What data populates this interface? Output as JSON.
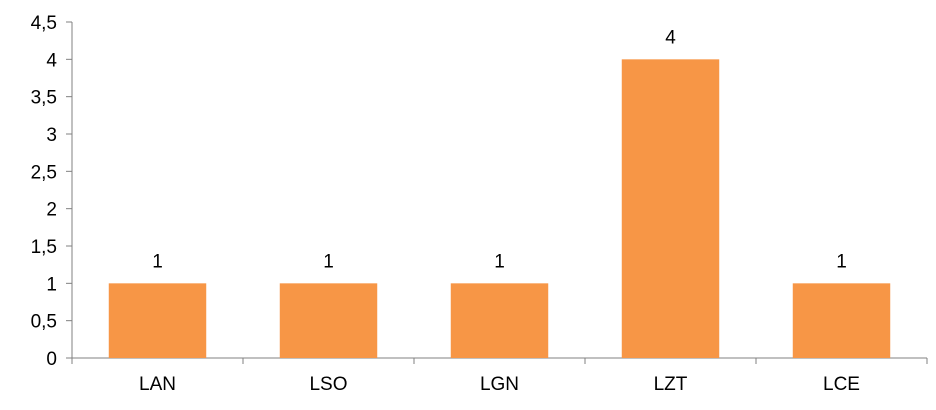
{
  "chart_data": {
    "type": "bar",
    "title": "",
    "xlabel": "",
    "ylabel": "",
    "categories": [
      "LAN",
      "LSO",
      "LGN",
      "LZT",
      "LCE"
    ],
    "series": [
      {
        "values": [
          1,
          1,
          1,
          4,
          1
        ],
        "color": "#F79646"
      }
    ],
    "data_labels": [
      "1",
      "1",
      "1",
      "4",
      "1"
    ],
    "ylim": [
      0,
      4.5
    ],
    "y_ticks": [
      0,
      0.5,
      1,
      1.5,
      2,
      2.5,
      3,
      3.5,
      4,
      4.5
    ],
    "y_tick_labels": [
      "0",
      "0,5",
      "1",
      "1,5",
      "2",
      "2,5",
      "3",
      "3,5",
      "4",
      "4,5"
    ],
    "grid": false,
    "legend": "none",
    "axis_color": "#808080"
  }
}
